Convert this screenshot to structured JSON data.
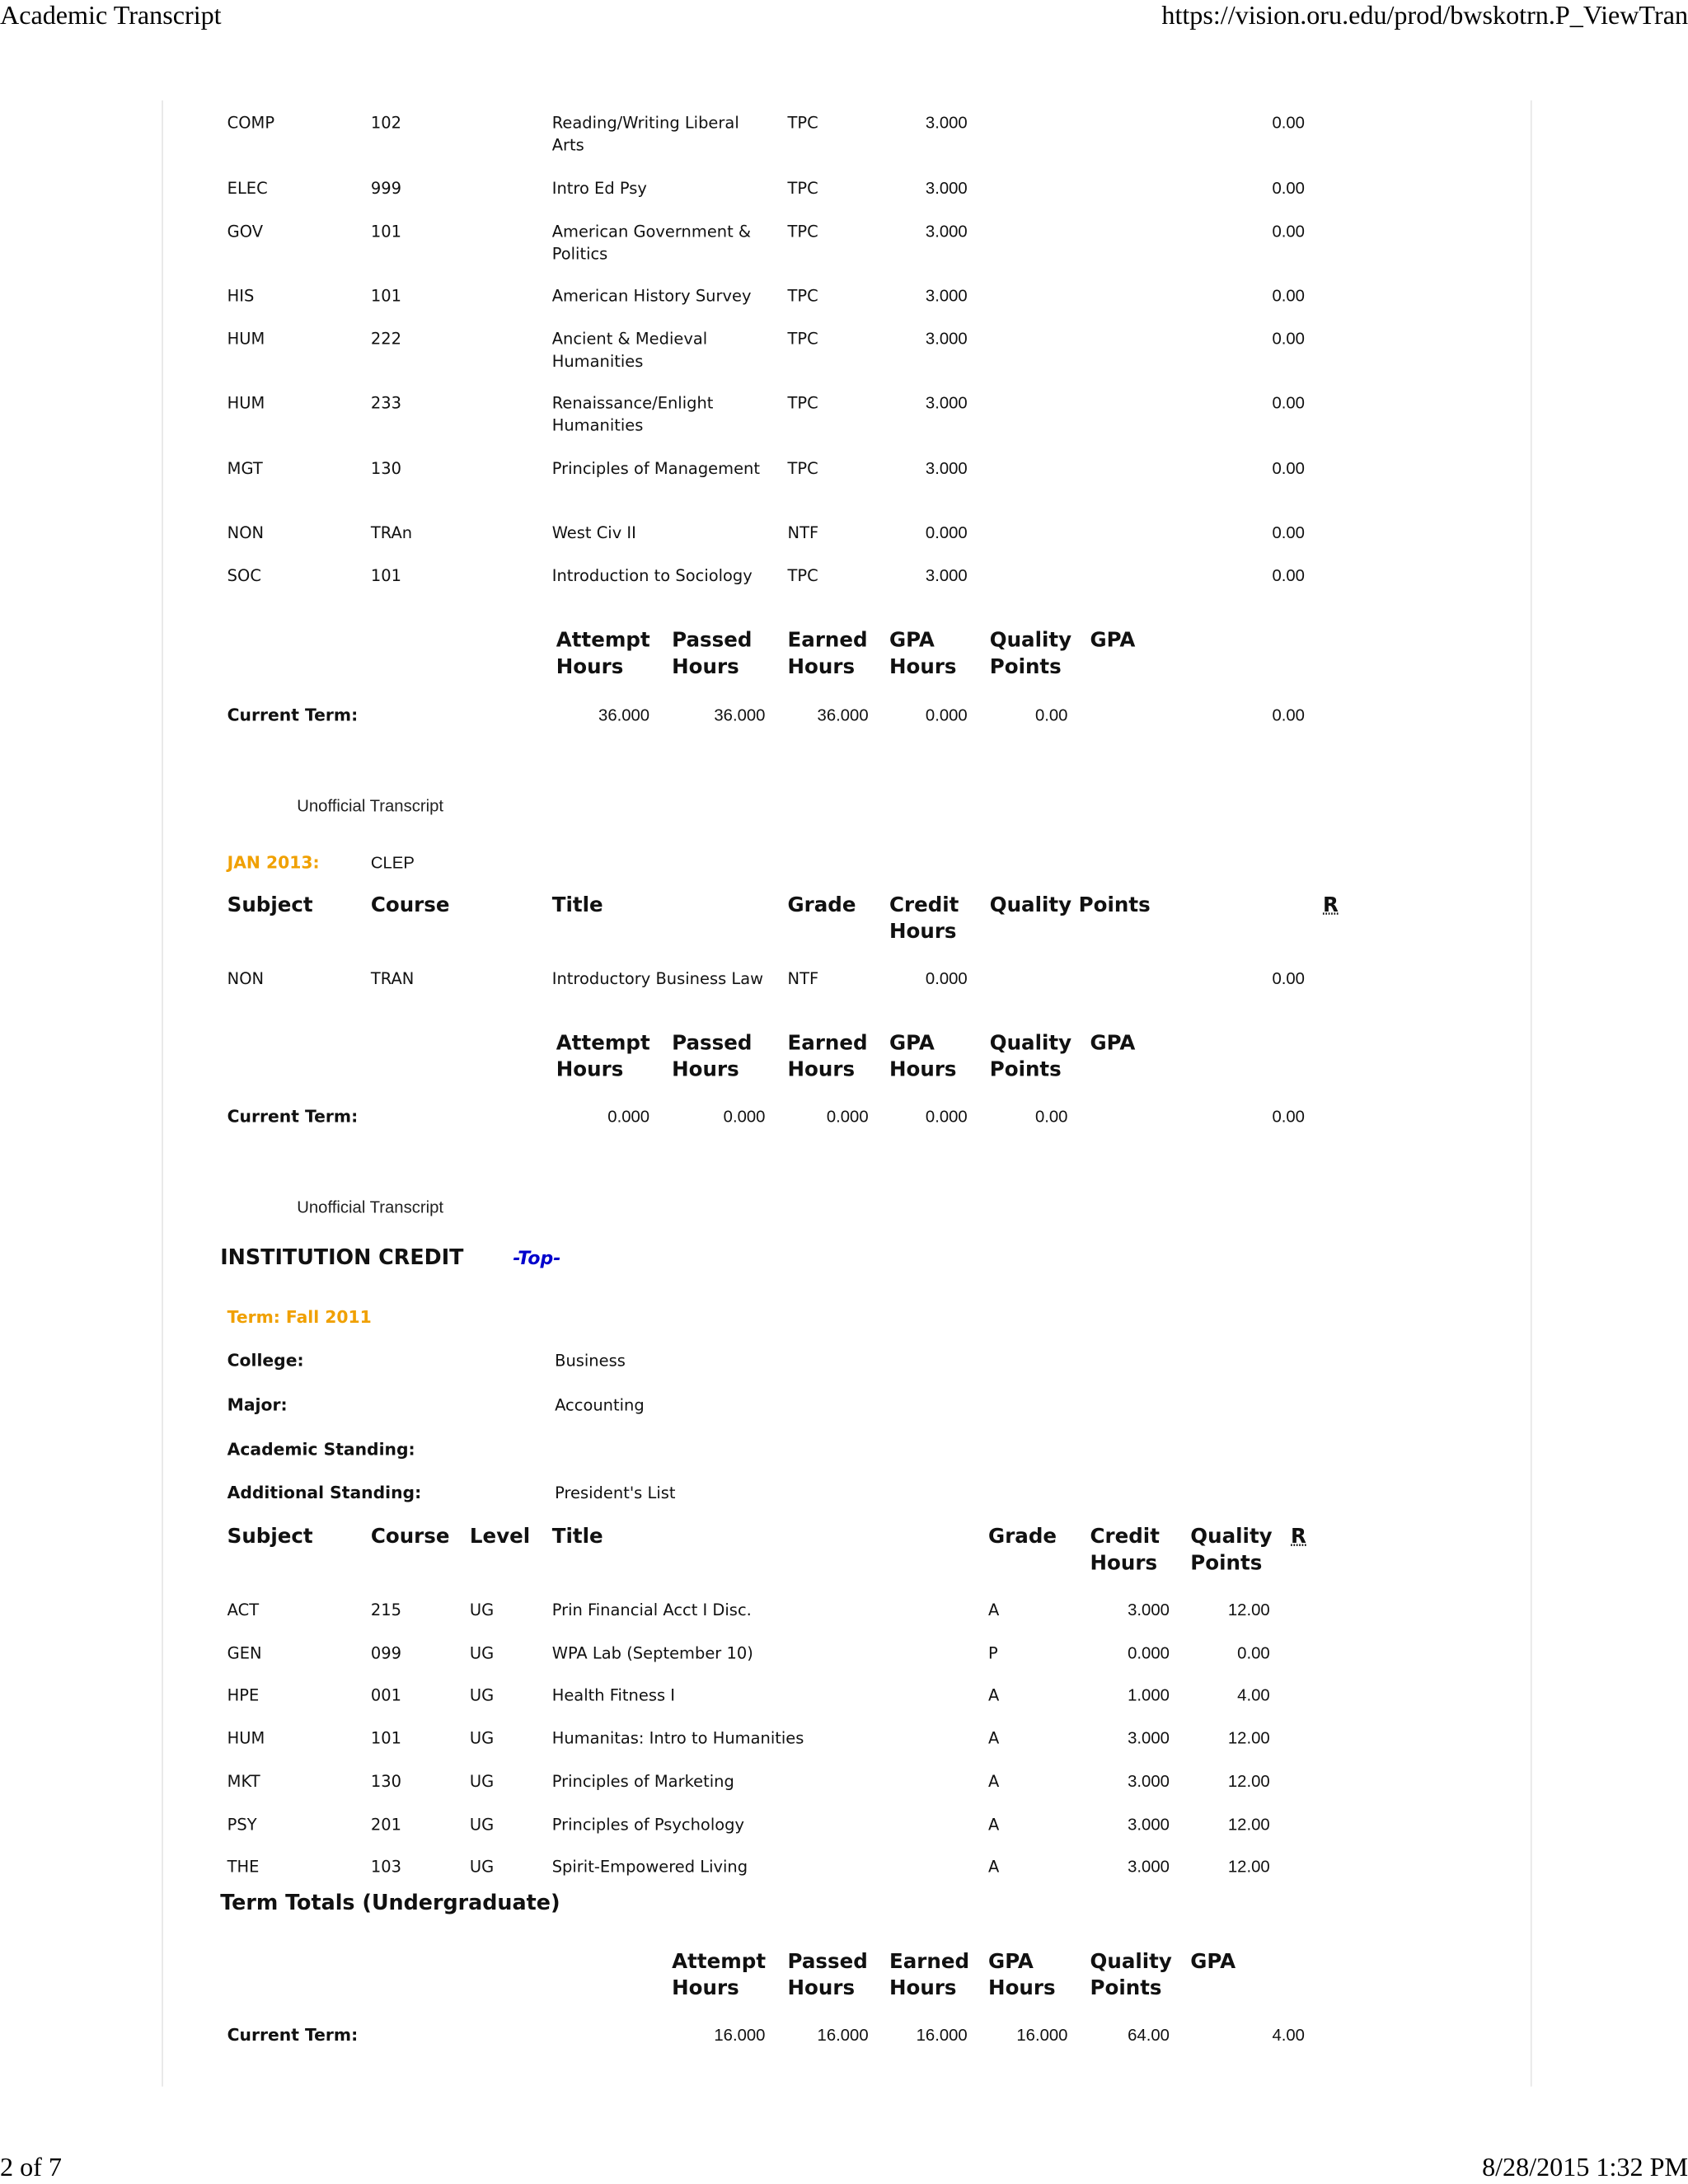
{
  "header": {
    "title": "Academic Transcript",
    "url": "https://vision.oru.edu/prod/bwskotrn.P_ViewTran"
  },
  "footer": {
    "page": "2 of 7",
    "datetime": "8/28/2015 1:32 PM"
  },
  "transfer_rows": [
    {
      "subject": "COMP",
      "course": "102",
      "title": "Reading/Writing Liberal Arts",
      "grade": "TPC",
      "credit": "3.000",
      "points": "0.00"
    },
    {
      "subject": "ELEC",
      "course": "999",
      "title": "Intro Ed Psy",
      "grade": "TPC",
      "credit": "3.000",
      "points": "0.00"
    },
    {
      "subject": "GOV",
      "course": "101",
      "title": "American Government & Politics",
      "grade": "TPC",
      "credit": "3.000",
      "points": "0.00"
    },
    {
      "subject": "HIS",
      "course": "101",
      "title": "American History Survey",
      "grade": "TPC",
      "credit": "3.000",
      "points": "0.00"
    },
    {
      "subject": "HUM",
      "course": "222",
      "title": "Ancient & Medieval Humanities",
      "grade": "TPC",
      "credit": "3.000",
      "points": "0.00"
    },
    {
      "subject": "HUM",
      "course": "233",
      "title": "Renaissance/Enlight Humanities",
      "grade": "TPC",
      "credit": "3.000",
      "points": "0.00"
    },
    {
      "subject": "MGT",
      "course": "130",
      "title": "Principles of Management",
      "grade": "TPC",
      "credit": "3.000",
      "points": "0.00"
    },
    {
      "subject": "NON",
      "course": "TRAn",
      "title": "West Civ II",
      "grade": "NTF",
      "credit": "0.000",
      "points": "0.00"
    },
    {
      "subject": "SOC",
      "course": "101",
      "title": "Introduction to Sociology",
      "grade": "TPC",
      "credit": "3.000",
      "points": "0.00"
    }
  ],
  "totals_headers": [
    "Attempt Hours",
    "Passed Hours",
    "Earned Hours",
    "GPA Hours",
    "Quality Points",
    "GPA"
  ],
  "current_term_label": "Current Term:",
  "totals1": [
    "36.000",
    "36.000",
    "36.000",
    "0.000",
    "0.00",
    "0.00"
  ],
  "unofficial": "Unofficial Transcript",
  "clep": {
    "term": "JAN 2013:",
    "source": "CLEP",
    "headers": {
      "subject": "Subject",
      "course": "Course",
      "title": "Title",
      "grade": "Grade",
      "credit": "Credit Hours",
      "points": "Quality Points",
      "r": "R"
    },
    "rows": [
      {
        "subject": "NON",
        "course": "TRAN",
        "title": "Introductory Business Law",
        "grade": "NTF",
        "credit": "0.000",
        "points": "0.00"
      }
    ],
    "totals": [
      "0.000",
      "0.000",
      "0.000",
      "0.000",
      "0.00",
      "0.00"
    ]
  },
  "institution": {
    "title": "INSTITUTION CREDIT",
    "top_link": "-Top-",
    "term": "Term: Fall 2011",
    "fields": [
      {
        "label": "College:",
        "value": "Business"
      },
      {
        "label": "Major:",
        "value": "Accounting"
      },
      {
        "label": "Academic Standing:",
        "value": ""
      },
      {
        "label": "Additional Standing:",
        "value": "President's List"
      }
    ],
    "headers": {
      "subject": "Subject",
      "course": "Course",
      "level": "Level",
      "title": "Title",
      "grade": "Grade",
      "credit": "Credit Hours",
      "points": "Quality Points",
      "r": "R"
    },
    "rows": [
      {
        "subject": "ACT",
        "course": "215",
        "level": "UG",
        "title": "Prin Financial Acct I Disc.",
        "grade": "A",
        "credit": "3.000",
        "points": "12.00"
      },
      {
        "subject": "GEN",
        "course": "099",
        "level": "UG",
        "title": "WPA Lab (September 10)",
        "grade": "P",
        "credit": "0.000",
        "points": "0.00"
      },
      {
        "subject": "HPE",
        "course": "001",
        "level": "UG",
        "title": "Health Fitness I",
        "grade": "A",
        "credit": "1.000",
        "points": "4.00"
      },
      {
        "subject": "HUM",
        "course": "101",
        "level": "UG",
        "title": "Humanitas: Intro to Humanities",
        "grade": "A",
        "credit": "3.000",
        "points": "12.00"
      },
      {
        "subject": "MKT",
        "course": "130",
        "level": "UG",
        "title": "Principles of Marketing",
        "grade": "A",
        "credit": "3.000",
        "points": "12.00"
      },
      {
        "subject": "PSY",
        "course": "201",
        "level": "UG",
        "title": "Principles of Psychology",
        "grade": "A",
        "credit": "3.000",
        "points": "12.00"
      },
      {
        "subject": "THE",
        "course": "103",
        "level": "UG",
        "title": "Spirit-Empowered Living",
        "grade": "A",
        "credit": "3.000",
        "points": "12.00"
      }
    ],
    "term_totals_label": "Term Totals (Undergraduate)",
    "totals": [
      "16.000",
      "16.000",
      "16.000",
      "16.000",
      "64.00",
      "4.00"
    ]
  }
}
